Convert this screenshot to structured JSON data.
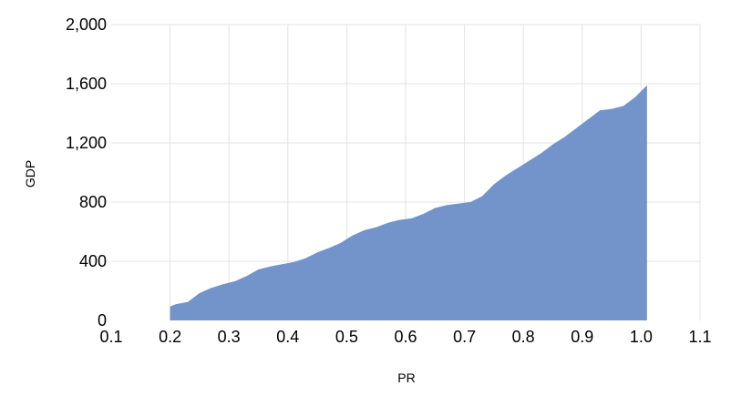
{
  "chart_data": {
    "type": "area",
    "title": "",
    "xlabel": "PR",
    "ylabel": "GDP",
    "xlim": [
      0.1,
      1.1
    ],
    "ylim": [
      0,
      2000
    ],
    "x_ticks": [
      0.1,
      0.2,
      0.3,
      0.4,
      0.5,
      0.6,
      0.7,
      0.8,
      0.9,
      1.0,
      1.1
    ],
    "x_tick_labels": [
      "0.1",
      "0.2",
      "0.3",
      "0.4",
      "0.5",
      "0.6",
      "0.7",
      "0.8",
      "0.9",
      "1.0",
      "1.1"
    ],
    "y_ticks": [
      0,
      400,
      800,
      1200,
      1600,
      2000
    ],
    "y_tick_labels": [
      "0",
      "400",
      "800",
      "1,200",
      "1,600",
      "2,000"
    ],
    "grid": true,
    "legend": "none",
    "fill_color": "#7393cb",
    "series": [
      {
        "x": [
          0.2,
          0.21,
          0.23,
          0.25,
          0.27,
          0.29,
          0.31,
          0.33,
          0.35,
          0.37,
          0.39,
          0.41,
          0.43,
          0.45,
          0.47,
          0.49,
          0.51,
          0.53,
          0.55,
          0.57,
          0.59,
          0.61,
          0.63,
          0.65,
          0.67,
          0.69,
          0.71,
          0.73,
          0.75,
          0.77,
          0.79,
          0.81,
          0.83,
          0.85,
          0.87,
          0.89,
          0.91,
          0.93,
          0.95,
          0.97,
          0.99,
          1.01
        ],
        "y": [
          95,
          110,
          125,
          185,
          220,
          245,
          265,
          300,
          345,
          365,
          380,
          395,
          420,
          460,
          490,
          525,
          575,
          610,
          630,
          660,
          680,
          690,
          720,
          760,
          780,
          790,
          800,
          840,
          920,
          980,
          1030,
          1080,
          1130,
          1190,
          1240,
          1300,
          1360,
          1420,
          1430,
          1450,
          1510,
          1590
        ]
      }
    ]
  }
}
